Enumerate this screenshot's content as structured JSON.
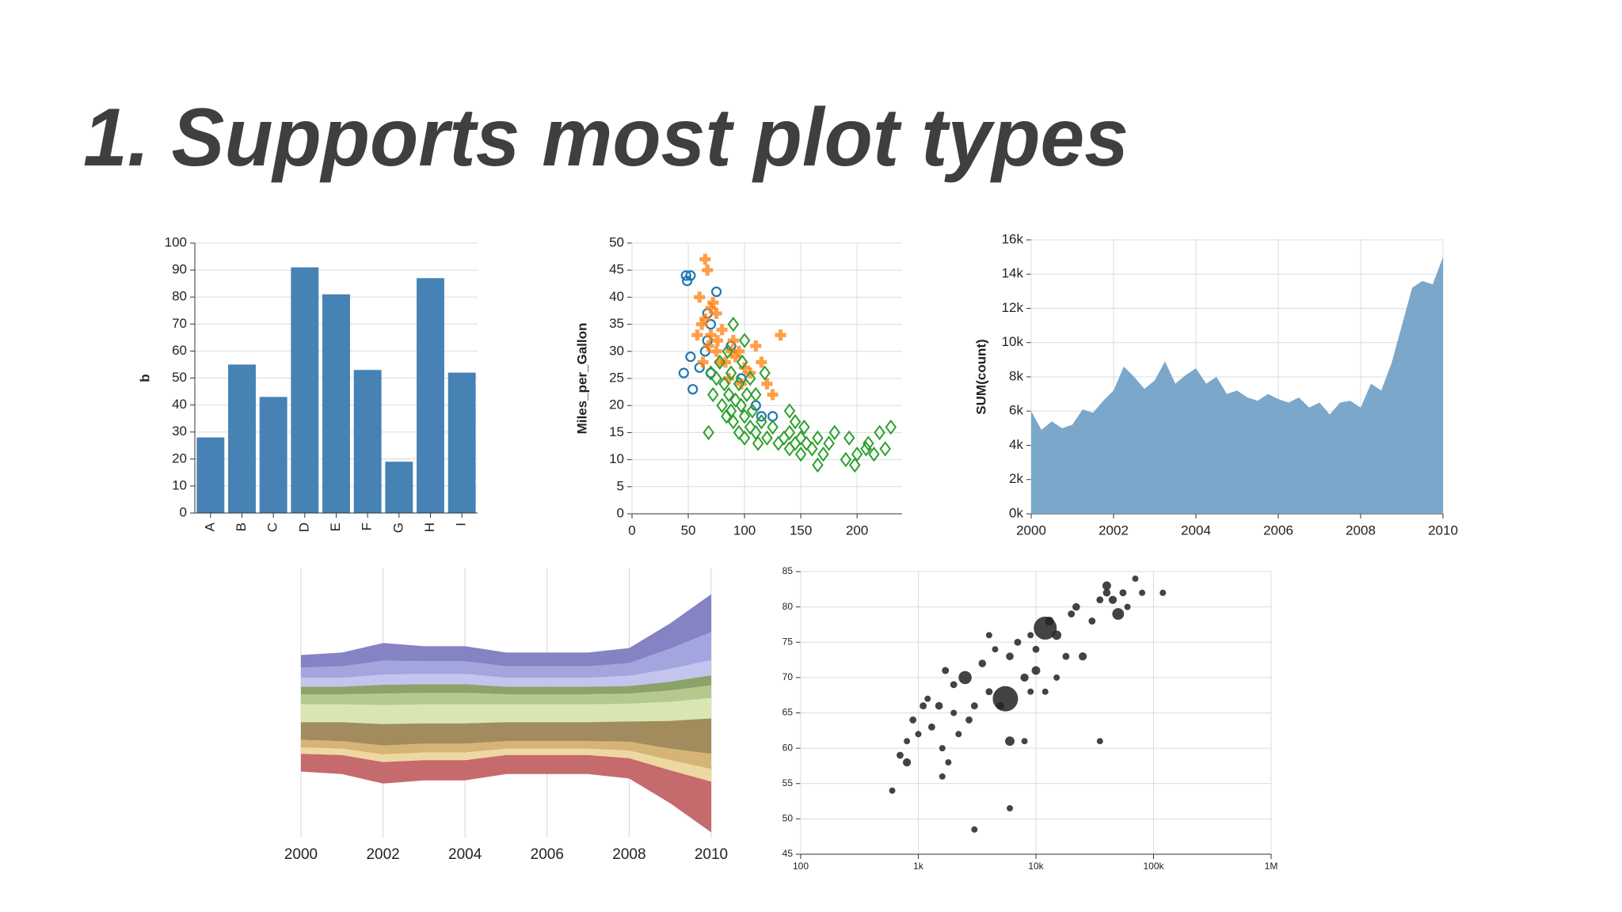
{
  "title": "1.  Supports most plot types",
  "chart_data": [
    {
      "type": "bar",
      "y_label": "b",
      "color": "#4682b4",
      "grid": "y",
      "categories": [
        "A",
        "B",
        "C",
        "D",
        "E",
        "F",
        "G",
        "H",
        "I"
      ],
      "values": [
        28,
        55,
        43,
        91,
        81,
        53,
        19,
        87,
        52
      ],
      "ylim": [
        0,
        100
      ],
      "yticks": [
        0,
        10,
        20,
        30,
        40,
        50,
        60,
        70,
        80,
        90,
        100
      ]
    },
    {
      "type": "scatter",
      "y_label": "Miles_per_Gallon",
      "grid": "both",
      "xlim": [
        0,
        240
      ],
      "xticks": [
        0,
        50,
        100,
        150,
        200
      ],
      "ylim": [
        0,
        50
      ],
      "yticks": [
        0,
        5,
        10,
        15,
        20,
        25,
        30,
        35,
        40,
        45,
        50
      ],
      "series": [
        {
          "color": "#1f77b4",
          "shape": "circle",
          "x": [
            46,
            48,
            49,
            52,
            52,
            54,
            60,
            65,
            67,
            70,
            75,
            88,
            97,
            110,
            115,
            125,
            70,
            67
          ],
          "y": [
            26,
            44,
            43,
            44,
            29,
            23,
            27,
            30,
            32,
            26,
            41,
            31,
            25,
            20,
            18,
            18,
            35,
            37
          ]
        },
        {
          "color": "#ff7f0e",
          "shape": "cross",
          "x": [
            60,
            62,
            65,
            65,
            67,
            68,
            70,
            70,
            72,
            75,
            75,
            76,
            78,
            80,
            83,
            86,
            88,
            90,
            92,
            95,
            97,
            100,
            105,
            110,
            115,
            120,
            125,
            132,
            58,
            63
          ],
          "y": [
            40,
            35,
            36,
            47,
            45,
            31,
            38,
            33,
            39,
            37,
            30,
            32,
            28,
            34,
            28,
            25,
            30,
            32,
            29,
            30,
            24,
            27,
            26,
            31,
            28,
            24,
            22,
            33,
            33,
            28
          ]
        },
        {
          "color": "#2ca02c",
          "shape": "diamond",
          "x": [
            68,
            70,
            72,
            75,
            78,
            80,
            82,
            84,
            85,
            86,
            88,
            88,
            90,
            90,
            92,
            95,
            95,
            97,
            98,
            100,
            100,
            102,
            105,
            105,
            107,
            110,
            110,
            112,
            115,
            118,
            120,
            125,
            130,
            135,
            140,
            140,
            145,
            145,
            150,
            150,
            153,
            155,
            160,
            165,
            170,
            175,
            180,
            190,
            193,
            198,
            200,
            208,
            210,
            215,
            220,
            225,
            230,
            165,
            140,
            100
          ],
          "y": [
            15,
            26,
            22,
            25,
            28,
            20,
            24,
            18,
            30,
            22,
            19,
            26,
            17,
            35,
            21,
            15,
            24,
            20,
            28,
            18,
            14,
            22,
            16,
            25,
            19,
            15,
            22,
            13,
            17,
            26,
            14,
            16,
            13,
            14,
            15,
            12,
            17,
            13,
            14,
            11,
            16,
            13,
            12,
            14,
            11,
            13,
            15,
            10,
            14,
            9,
            11,
            12,
            13,
            11,
            15,
            12,
            16,
            9,
            19,
            32
          ]
        }
      ]
    },
    {
      "type": "area",
      "y_label": "SUM(count)",
      "color": "#6d9dc5",
      "grid": "both",
      "x": [
        2000,
        2000.25,
        2000.5,
        2000.75,
        2001,
        2001.25,
        2001.5,
        2001.75,
        2002,
        2002.25,
        2002.5,
        2002.75,
        2003,
        2003.25,
        2003.5,
        2003.75,
        2004,
        2004.25,
        2004.5,
        2004.75,
        2005,
        2005.25,
        2005.5,
        2005.75,
        2006,
        2006.25,
        2006.5,
        2006.75,
        2007,
        2007.25,
        2007.5,
        2007.75,
        2008,
        2008.25,
        2008.5,
        2008.75,
        2009,
        2009.25,
        2009.5,
        2009.75,
        2010
      ],
      "values": [
        6000,
        4900,
        5400,
        5000,
        5200,
        6100,
        5900,
        6600,
        7200,
        8600,
        8000,
        7300,
        7800,
        8900,
        7600,
        8100,
        8500,
        7600,
        8000,
        7000,
        7200,
        6800,
        6600,
        7000,
        6700,
        6500,
        6800,
        6200,
        6500,
        5800,
        6500,
        6600,
        6200,
        7600,
        7200,
        8800,
        11000,
        13200,
        13600,
        13400,
        15000
      ],
      "xlim": [
        2000,
        2010
      ],
      "xticks": [
        2000,
        2002,
        2004,
        2006,
        2008,
        2010
      ],
      "ylim": [
        0,
        16000
      ],
      "yticks": [
        {
          "value": 0,
          "label": "0k"
        },
        {
          "value": 2000,
          "label": "2k"
        },
        {
          "value": 4000,
          "label": "4k"
        },
        {
          "value": 6000,
          "label": "6k"
        },
        {
          "value": 8000,
          "label": "8k"
        },
        {
          "value": 10000,
          "label": "10k"
        },
        {
          "value": 12000,
          "label": "12k"
        },
        {
          "value": 14000,
          "label": "14k"
        },
        {
          "value": 16000,
          "label": "16k"
        }
      ]
    },
    {
      "type": "streamgraph",
      "grid": "x",
      "x": [
        2000,
        2001,
        2002,
        2003,
        2004,
        2005,
        2006,
        2007,
        2008,
        2009,
        2010
      ],
      "xlim": [
        2000,
        2010
      ],
      "xticks": [
        2000,
        2002,
        2004,
        2006,
        2008,
        2010
      ],
      "series": [
        {
          "color": "#8583c4",
          "values": [
            10,
            11,
            14,
            12,
            12,
            11,
            11,
            11,
            12,
            20,
            30
          ]
        },
        {
          "color": "#a3a5de",
          "values": [
            8,
            9,
            11,
            10,
            10,
            9,
            9,
            9,
            10,
            16,
            22
          ]
        },
        {
          "color": "#c3c5ee",
          "values": [
            7,
            7,
            8,
            8,
            8,
            7,
            7,
            7,
            8,
            10,
            12
          ]
        },
        {
          "color": "#8ba36a",
          "values": [
            6,
            6,
            7,
            7,
            7,
            6,
            6,
            6,
            6,
            7,
            8
          ]
        },
        {
          "color": "#b5c98e",
          "values": [
            8,
            8,
            9,
            9,
            9,
            8,
            8,
            8,
            8,
            9,
            10
          ]
        },
        {
          "color": "#d8e6b4",
          "values": [
            14,
            14,
            15,
            15,
            15,
            14,
            14,
            14,
            14,
            15,
            16
          ]
        },
        {
          "color": "#a28c5d",
          "values": [
            14,
            15,
            17,
            16,
            16,
            15,
            15,
            15,
            16,
            22,
            28
          ]
        },
        {
          "color": "#d5b475",
          "values": [
            6,
            6,
            7,
            7,
            7,
            6,
            6,
            6,
            7,
            9,
            12
          ]
        },
        {
          "color": "#eed8a1",
          "values": [
            5,
            5,
            6,
            6,
            6,
            5,
            5,
            5,
            6,
            8,
            10
          ]
        },
        {
          "color": "#c56a6d",
          "values": [
            14,
            15,
            17,
            16,
            16,
            15,
            15,
            15,
            16,
            26,
            40
          ]
        }
      ]
    },
    {
      "type": "bubble",
      "color": "#222222",
      "grid": "both",
      "xscale": "log",
      "x": [
        600,
        700,
        800,
        800,
        900,
        1000,
        1100,
        1200,
        1300,
        1500,
        1600,
        1700,
        1800,
        2000,
        2200,
        2500,
        2700,
        3000,
        3000,
        3500,
        4000,
        4500,
        5000,
        5500,
        6000,
        6000,
        7000,
        8000,
        8000,
        9000,
        10000,
        10000,
        12000,
        13000,
        15000,
        15000,
        18000,
        20000,
        22000,
        25000,
        30000,
        35000,
        35000,
        40000,
        40000,
        45000,
        50000,
        55000,
        60000,
        70000,
        80000,
        120000,
        6000,
        4000,
        1600,
        2000,
        9000,
        12000
      ],
      "y": [
        54,
        59,
        58,
        61,
        64,
        62,
        66,
        67,
        63,
        66,
        60,
        71,
        58,
        69,
        62,
        70,
        64,
        48.5,
        66,
        72,
        68,
        74,
        66,
        67,
        61,
        73,
        75,
        70,
        61,
        76,
        74,
        71,
        77,
        78,
        76,
        70,
        73,
        79,
        80,
        73,
        78,
        81,
        61,
        83,
        82,
        81,
        79,
        82,
        80,
        84,
        82,
        82,
        51.5,
        76,
        56,
        65,
        68,
        68
      ],
      "size": [
        2,
        3,
        5,
        2,
        3,
        2,
        3,
        2,
        3,
        4,
        2,
        3,
        2,
        3,
        2,
        20,
        3,
        2,
        3,
        4,
        3,
        2,
        4,
        100,
        8,
        4,
        3,
        5,
        2,
        2,
        3,
        6,
        80,
        6,
        8,
        2,
        3,
        3,
        4,
        5,
        3,
        3,
        2,
        6,
        4,
        5,
        15,
        3,
        2,
        2,
        2,
        2,
        2,
        2,
        2,
        2,
        2,
        2
      ],
      "xlim": [
        100,
        1000000
      ],
      "xticks": [
        100,
        {
          "value": 1000,
          "label": "1k"
        },
        {
          "value": 10000,
          "label": "10k"
        },
        {
          "value": 100000,
          "label": "100k"
        },
        {
          "value": 1000000,
          "label": "1M"
        }
      ],
      "ylim": [
        45,
        85
      ],
      "yticks": [
        45,
        50,
        55,
        60,
        65,
        70,
        75,
        80,
        85
      ]
    }
  ]
}
